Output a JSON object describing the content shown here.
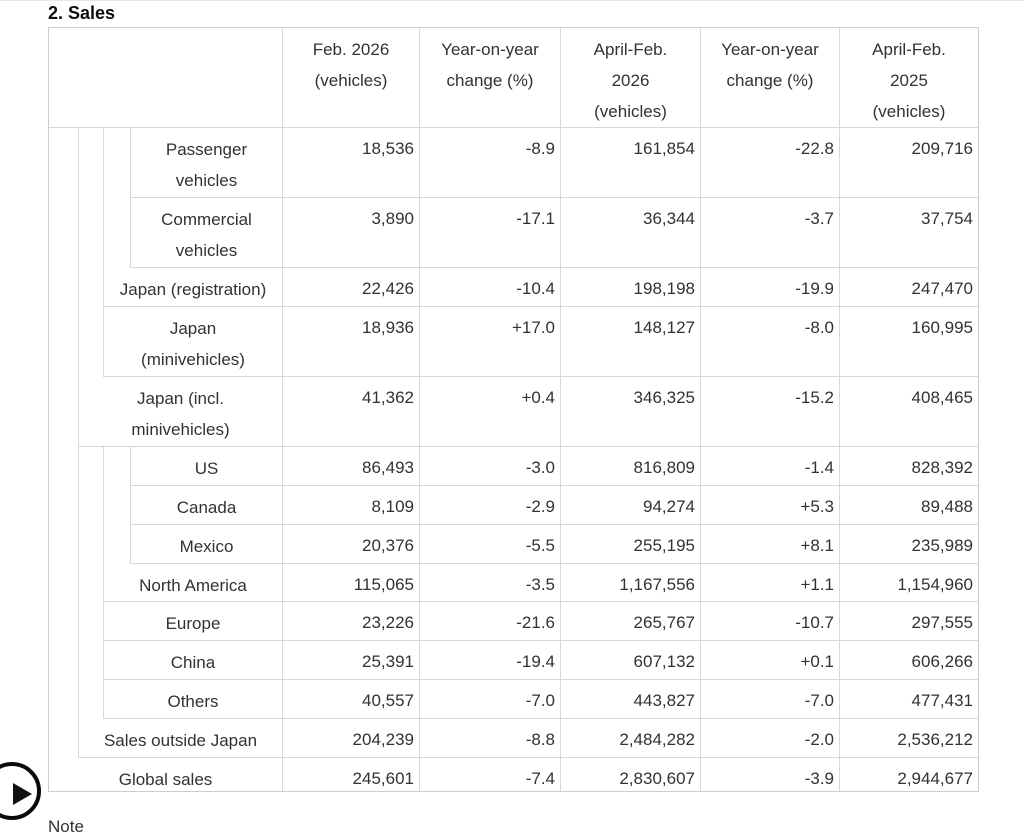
{
  "page": {
    "title": "2. Sales",
    "note_label": "Note"
  },
  "colors": {
    "border_inner": "#d5d9dd",
    "border_outer": "#c9ced3",
    "text": "#2f3237",
    "title_text": "#0d0d0d",
    "fab_black": "#0a0a0a",
    "background": "#ffffff"
  },
  "icons": {
    "fab": "play-icon"
  },
  "table": {
    "corner": "",
    "headers": [
      "Feb. 2026\n(vehicles)",
      "Year-on-year\nchange (%)",
      "April-Feb.\n2026\n(vehicles)",
      "Year-on-year\nchange (%)",
      "April-Feb.\n2025\n(vehicles)"
    ],
    "rows": [
      {
        "label": "Passenger\nvehicles",
        "level": 4,
        "values": [
          "18,536",
          "-8.9",
          "161,854",
          "-22.8",
          "209,716"
        ]
      },
      {
        "label": "Commercial\nvehicles",
        "level": 4,
        "values": [
          "3,890",
          "-17.1",
          "36,344",
          "-3.7",
          "37,754"
        ]
      },
      {
        "label": "Japan (registration)",
        "level": 3,
        "values": [
          "22,426",
          "-10.4",
          "198,198",
          "-19.9",
          "247,470"
        ]
      },
      {
        "label": "Japan\n(minivehicles)",
        "level": 3,
        "values": [
          "18,936",
          "+17.0",
          "148,127",
          "-8.0",
          "160,995"
        ]
      },
      {
        "label": "Japan (incl.\nminivehicles)",
        "level": 2,
        "values": [
          "41,362",
          "+0.4",
          "346,325",
          "-15.2",
          "408,465"
        ]
      },
      {
        "label": "US",
        "level": 4,
        "values": [
          "86,493",
          "-3.0",
          "816,809",
          "-1.4",
          "828,392"
        ]
      },
      {
        "label": "Canada",
        "level": 4,
        "values": [
          "8,109",
          "-2.9",
          "94,274",
          "+5.3",
          "89,488"
        ]
      },
      {
        "label": "Mexico",
        "level": 4,
        "values": [
          "20,376",
          "-5.5",
          "255,195",
          "+8.1",
          "235,989"
        ]
      },
      {
        "label": "North America",
        "level": 3,
        "values": [
          "115,065",
          "-3.5",
          "1,167,556",
          "+1.1",
          "1,154,960"
        ]
      },
      {
        "label": "Europe",
        "level": 3,
        "values": [
          "23,226",
          "-21.6",
          "265,767",
          "-10.7",
          "297,555"
        ]
      },
      {
        "label": "China",
        "level": 3,
        "values": [
          "25,391",
          "-19.4",
          "607,132",
          "+0.1",
          "606,266"
        ]
      },
      {
        "label": "Others",
        "level": 3,
        "values": [
          "40,557",
          "-7.0",
          "443,827",
          "-7.0",
          "477,431"
        ]
      },
      {
        "label": "Sales outside Japan",
        "level": 2,
        "values": [
          "204,239",
          "-8.8",
          "2,484,282",
          "-2.0",
          "2,536,212"
        ]
      },
      {
        "label": "Global sales",
        "level": 1,
        "values": [
          "245,601",
          "-7.4",
          "2,830,607",
          "-3.9",
          "2,944,677"
        ]
      }
    ]
  }
}
